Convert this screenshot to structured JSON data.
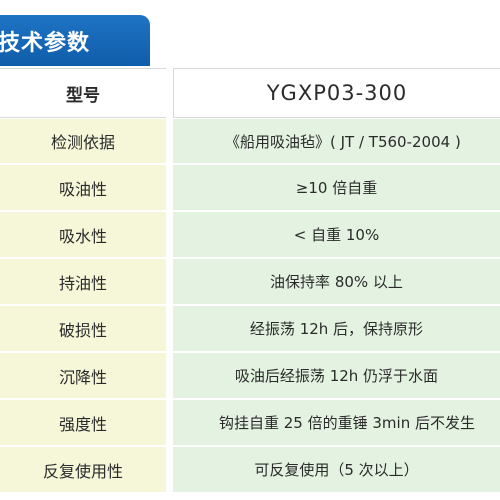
{
  "section_title": "技术参数",
  "header": {
    "label": "型号",
    "model": "YGXP03-300"
  },
  "rows": [
    {
      "param": "检测依据",
      "value": "《船用吸油毡》( JT / T560-2004 )"
    },
    {
      "param": "吸油性",
      "value": "≥10 倍自重"
    },
    {
      "param": "吸水性",
      "value": "< 自重 10%"
    },
    {
      "param": "持油性",
      "value": "油保持率 80% 以上"
    },
    {
      "param": "破损性",
      "value": "经振荡 12h 后，保持原形"
    },
    {
      "param": "沉降性",
      "value": "吸油后经振荡 12h 仍浮于水面"
    },
    {
      "param": "强度性",
      "value": "钩挂自重 25 倍的重锤 3min 后不发生"
    },
    {
      "param": "反复使用性",
      "value": "可反复使用（5 次以上）"
    }
  ],
  "colors": {
    "title_bar": "#1565b8",
    "left_col_bg": "#f6f7d9",
    "right_col_bg": "#e4f3e1"
  }
}
